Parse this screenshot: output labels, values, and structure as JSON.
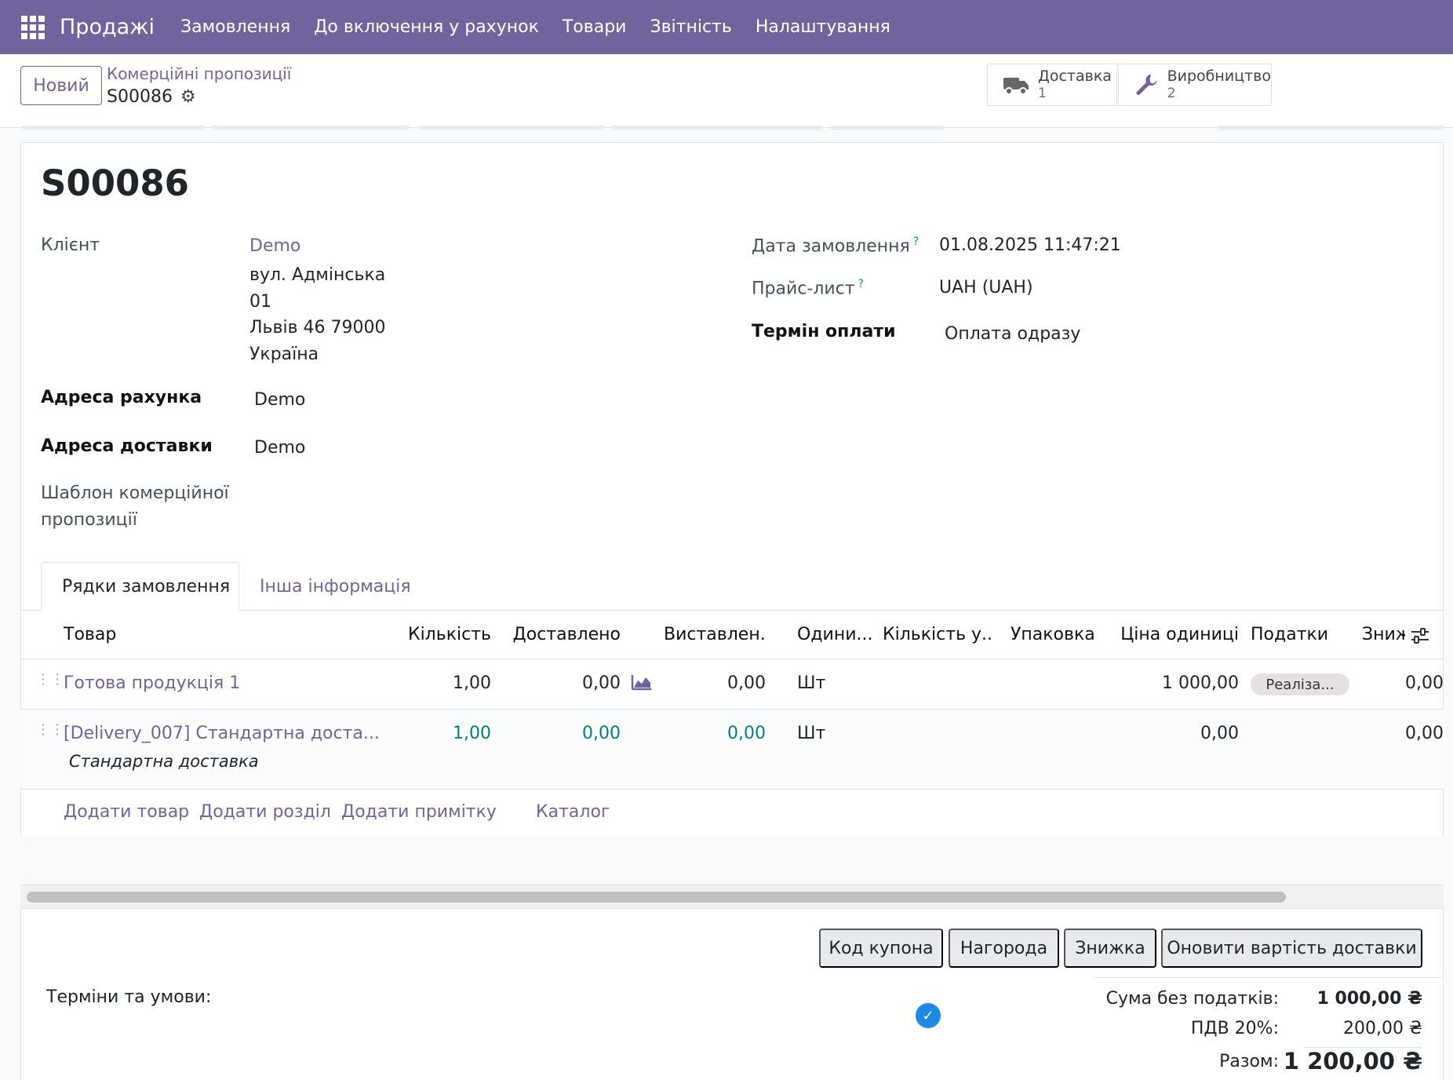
{
  "topbar": {
    "app_name": "Продажі",
    "menu": [
      "Замовлення",
      "До включення у рахунок",
      "Товари",
      "Звітність",
      "Налаштування"
    ],
    "bg_color": "#71639e"
  },
  "control_panel": {
    "new_label": "Новий",
    "breadcrumb": "Комерційні пропозиції",
    "record": "S00086",
    "smart_buttons": [
      {
        "label": "Доставка",
        "count": "1",
        "icon": "truck-icon"
      },
      {
        "label": "Виробництво",
        "count": "2",
        "icon": "wrench-icon"
      }
    ]
  },
  "form": {
    "title": "S00086",
    "customer_label": "Клієнт",
    "customer_name": "Demo",
    "customer_address": [
      "вул. Адмінська",
      "01",
      "Львів 46 79000",
      "Україна"
    ],
    "invoice_address_label": "Адреса рахунка",
    "invoice_address": "Demo",
    "delivery_address_label": "Адреса доставки",
    "delivery_address": "Demo",
    "template_label_line1": "Шаблон комерційної",
    "template_label_line2": "пропозиції",
    "order_date_label": "Дата замовлення",
    "order_date": "01.08.2025 11:47:21",
    "pricelist_label": "Прайс-лист",
    "pricelist": "UAH (UAH)",
    "payment_terms_label": "Термін оплати",
    "payment_terms": "Оплата одразу",
    "help_mark": "?"
  },
  "tabs": [
    "Рядки замовлення",
    "Інша інформація"
  ],
  "table": {
    "headers": [
      "Товар",
      "Кількість",
      "Доставлено",
      "Виставлен...",
      "Одини...",
      "Кількість у...",
      "Упаковка",
      "Ціна одиниці",
      "Податки",
      "Зниж"
    ],
    "rows": [
      {
        "product": "Готова продукція 1",
        "qty": "1,00",
        "delivered": "0,00",
        "invoiced": "0,00",
        "uom": "Шт",
        "price": "1 000,00",
        "tax": "Реаліза...",
        "discount": "0,00"
      },
      {
        "product": "[Delivery_007] Стандартна доста...",
        "qty": "1,00",
        "delivered": "0,00",
        "invoiced": "0,00",
        "uom": "Шт",
        "price": "0,00",
        "tax": "",
        "discount": "0,00",
        "note": "Стандартна доставка"
      }
    ],
    "add_links": [
      "Додати товар",
      "Додати розділ",
      "Додати примітку",
      "Каталог"
    ]
  },
  "actions": [
    "Код купона",
    "Нагорода",
    "Знижка",
    "Оновити вартість доставки"
  ],
  "footer": {
    "terms_label": "Терміни та умови:",
    "untaxed_label": "Сума без податків:",
    "untaxed_value": "1 000,00 ₴",
    "vat_label": "ПДВ 20%:",
    "vat_value": "200,00 ₴",
    "total_label": "Разом:",
    "total_value": "1 200,00 ₴"
  }
}
